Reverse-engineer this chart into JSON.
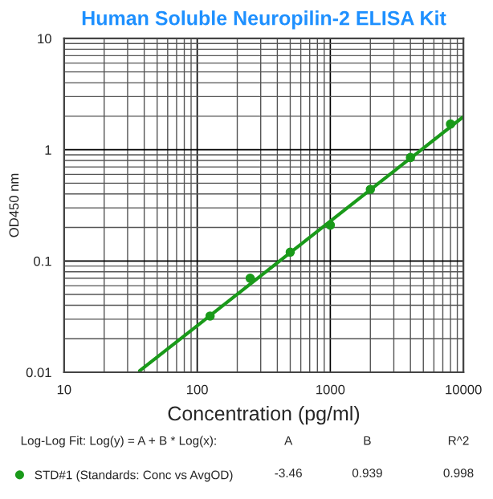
{
  "chart_data": {
    "type": "scatter",
    "title": "Human Soluble Neuropilin-2 ELISA Kit",
    "xlabel": "Concentration (pg/ml)",
    "ylabel": "OD450 nm",
    "log": "xy",
    "grid": true,
    "legend": "bottom",
    "xlim": [
      10,
      10000
    ],
    "xticks": [
      10,
      100,
      1000,
      10000
    ],
    "ylim": [
      0.01,
      10
    ],
    "yticks": [
      0.01,
      0.1,
      1,
      10
    ],
    "series": [
      {
        "name": "STD#1 (Standards: Conc vs AvgOD)",
        "marker": "circle",
        "color": "#1a9a1a",
        "x": [
          125,
          250,
          500,
          1000,
          2000,
          4000,
          8000
        ],
        "values": [
          0.032,
          0.07,
          0.12,
          0.21,
          0.44,
          0.85,
          1.7
        ]
      },
      {
        "type": "line",
        "color": "#1a9a1a",
        "x": [
          37,
          10000
        ],
        "values": [
          0.0103,
          1.98
        ]
      }
    ],
    "annotations": [
      "Log-Log Fit: Log(y) = A + B * Log(x):",
      "A",
      "B",
      "R^2",
      "-3.46",
      "0.939",
      "0.998"
    ]
  }
}
